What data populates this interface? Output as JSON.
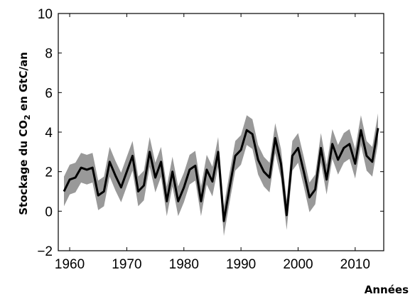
{
  "chart_data": {
    "type": "line",
    "xlabel": "Années",
    "ylabel_parts": {
      "before": "Stockage du CO",
      "subscript": "2",
      "after": " en GtC/an"
    },
    "xlim": [
      1958,
      2015
    ],
    "ylim": [
      -2,
      10
    ],
    "xticks": [
      1960,
      1970,
      1980,
      1990,
      2000,
      2010
    ],
    "yticks": [
      -2,
      0,
      2,
      4,
      6,
      8,
      10
    ],
    "ytick_labels": [
      "−2",
      "0",
      "2",
      "4",
      "6",
      "8",
      "10"
    ],
    "grid": false,
    "legend": "none",
    "colors": {
      "line": "#000000",
      "band": "#999999"
    },
    "x": [
      1959,
      1960,
      1961,
      1962,
      1963,
      1964,
      1965,
      1966,
      1967,
      1968,
      1969,
      1970,
      1971,
      1972,
      1973,
      1974,
      1975,
      1976,
      1977,
      1978,
      1979,
      1980,
      1981,
      1982,
      1983,
      1984,
      1985,
      1986,
      1987,
      1988,
      1989,
      1990,
      1991,
      1992,
      1993,
      1994,
      1995,
      1996,
      1997,
      1998,
      1999,
      2000,
      2001,
      2002,
      2003,
      2004,
      2005,
      2006,
      2007,
      2008,
      2009,
      2010,
      2011,
      2012,
      2013,
      2014
    ],
    "series": [
      {
        "values": [
          1.0,
          1.6,
          1.7,
          2.2,
          2.1,
          2.2,
          0.8,
          1.0,
          2.5,
          1.8,
          1.2,
          2.0,
          2.8,
          1.0,
          1.3,
          3.0,
          1.7,
          2.5,
          0.5,
          2.0,
          0.5,
          1.2,
          2.1,
          2.3,
          0.5,
          2.1,
          1.5,
          3.0,
          -0.5,
          1.2,
          2.8,
          3.1,
          4.1,
          3.9,
          2.6,
          2.0,
          1.7,
          3.7,
          2.4,
          -0.2,
          2.8,
          3.2,
          2.0,
          0.7,
          1.1,
          3.2,
          1.6,
          3.4,
          2.6,
          3.2,
          3.4,
          2.4,
          4.1,
          2.8,
          2.5,
          4.2
        ],
        "band_half_width": 0.75
      }
    ]
  }
}
